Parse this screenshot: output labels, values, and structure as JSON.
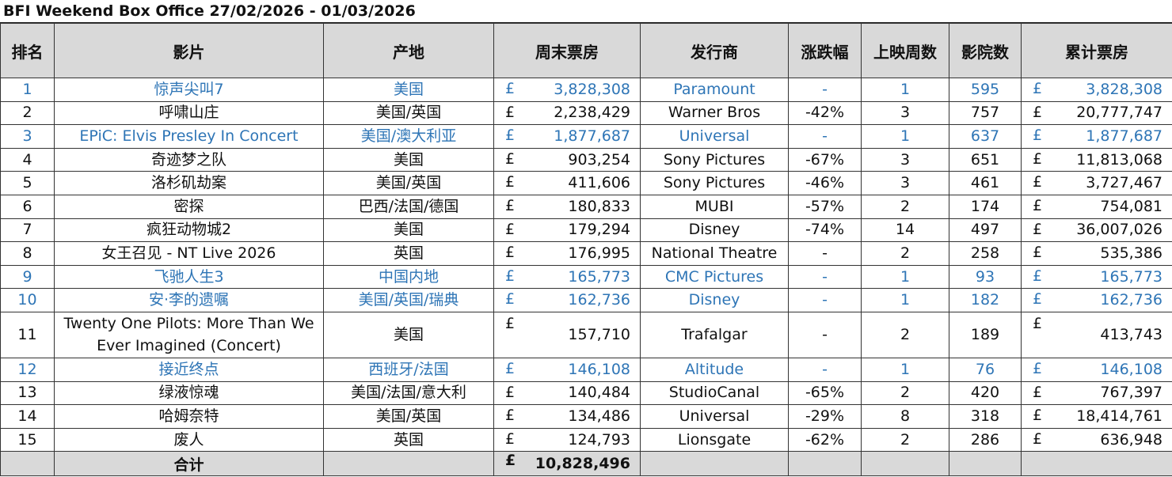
{
  "title": "BFI Weekend Box Office 27/02/2026 - 01/03/2026",
  "colors": {
    "new_entry_text": "#2e75b6",
    "header_bg": "#d9d9d9"
  },
  "headers": [
    "排名",
    "影片",
    "产地",
    "周末票房",
    "发行商",
    "涨跌幅",
    "上映周数",
    "影院数",
    "累计票房"
  ],
  "currency_symbol": "£",
  "rows": [
    {
      "rank": "1",
      "film": "惊声尖叫7",
      "origin": "美国",
      "weekend": "3,828,308",
      "distributor": "Paramount",
      "change": "-",
      "weeks": "1",
      "cinemas": "595",
      "total": "3,828,308",
      "new": true
    },
    {
      "rank": "2",
      "film": "呼啸山庄",
      "origin": "美国/英国",
      "weekend": "2,238,429",
      "distributor": "Warner Bros",
      "change": "-42%",
      "weeks": "3",
      "cinemas": "757",
      "total": "20,777,747",
      "new": false
    },
    {
      "rank": "3",
      "film": "EPiC: Elvis Presley In Concert",
      "origin": "美国/澳大利亚",
      "weekend": "1,877,687",
      "distributor": "Universal",
      "change": "-",
      "weeks": "1",
      "cinemas": "637",
      "total": "1,877,687",
      "new": true
    },
    {
      "rank": "4",
      "film": "奇迹梦之队",
      "origin": "美国",
      "weekend": "903,254",
      "distributor": "Sony Pictures",
      "change": "-67%",
      "weeks": "3",
      "cinemas": "651",
      "total": "11,813,068",
      "new": false
    },
    {
      "rank": "5",
      "film": "洛杉矶劫案",
      "origin": "美国/英国",
      "weekend": "411,606",
      "distributor": "Sony Pictures",
      "change": "-46%",
      "weeks": "3",
      "cinemas": "461",
      "total": "3,727,467",
      "new": false
    },
    {
      "rank": "6",
      "film": "密探",
      "origin": "巴西/法国/德国",
      "weekend": "180,833",
      "distributor": "MUBI",
      "change": "-57%",
      "weeks": "2",
      "cinemas": "174",
      "total": "754,081",
      "new": false
    },
    {
      "rank": "7",
      "film": "疯狂动物城2",
      "origin": "美国",
      "weekend": "179,294",
      "distributor": "Disney",
      "change": "-74%",
      "weeks": "14",
      "cinemas": "497",
      "total": "36,007,026",
      "new": false
    },
    {
      "rank": "8",
      "film": "女王召见 - NT Live 2026",
      "origin": "英国",
      "weekend": "176,995",
      "distributor": "National Theatre",
      "change": "-",
      "weeks": "2",
      "cinemas": "258",
      "total": "535,386",
      "new": false
    },
    {
      "rank": "9",
      "film": "飞驰人生3",
      "origin": "中国内地",
      "weekend": "165,773",
      "distributor": "CMC Pictures",
      "change": "-",
      "weeks": "1",
      "cinemas": "93",
      "total": "165,773",
      "new": true
    },
    {
      "rank": "10",
      "film": "安·李的遗嘱",
      "origin": "美国/英国/瑞典",
      "weekend": "162,736",
      "distributor": "Disney",
      "change": "-",
      "weeks": "1",
      "cinemas": "182",
      "total": "162,736",
      "new": true
    },
    {
      "rank": "11",
      "film": "Twenty One Pilots: More Than We Ever Imagined (Concert)",
      "origin": "美国",
      "weekend": "157,710",
      "distributor": "Trafalgar",
      "change": "-",
      "weeks": "2",
      "cinemas": "189",
      "total": "413,743",
      "new": false,
      "tall": true
    },
    {
      "rank": "12",
      "film": "接近终点",
      "origin": "西班牙/法国",
      "weekend": "146,108",
      "distributor": "Altitude",
      "change": "-",
      "weeks": "1",
      "cinemas": "76",
      "total": "146,108",
      "new": true
    },
    {
      "rank": "13",
      "film": "绿液惊魂",
      "origin": "美国/法国/意大利",
      "weekend": "140,484",
      "distributor": "StudioCanal",
      "change": "-65%",
      "weeks": "2",
      "cinemas": "420",
      "total": "767,397",
      "new": false
    },
    {
      "rank": "14",
      "film": "哈姆奈特",
      "origin": "美国/英国",
      "weekend": "134,486",
      "distributor": "Universal",
      "change": "-29%",
      "weeks": "8",
      "cinemas": "318",
      "total": "18,414,761",
      "new": false
    },
    {
      "rank": "15",
      "film": "废人",
      "origin": "英国",
      "weekend": "124,793",
      "distributor": "Lionsgate",
      "change": "-62%",
      "weeks": "2",
      "cinemas": "286",
      "total": "636,948",
      "new": false
    }
  ],
  "footer": {
    "label": "合计",
    "weekend_total": "10,828,496"
  }
}
